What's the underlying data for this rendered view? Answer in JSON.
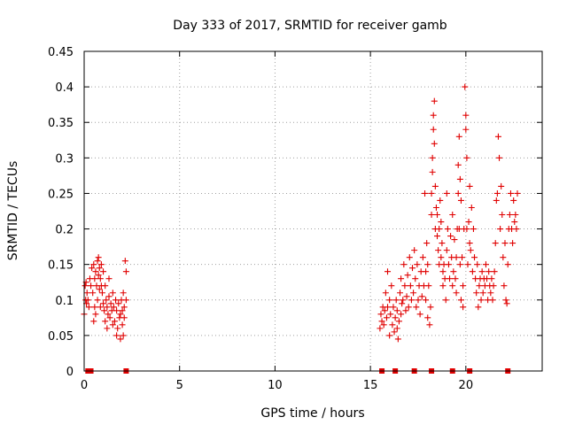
{
  "chart_data": {
    "type": "scatter",
    "title": "Day 333 of 2017, SRMTID for receiver gamb",
    "xlabel": "GPS time / hours",
    "ylabel": "SRMTID / TECUs",
    "xlim": [
      0,
      24
    ],
    "ylim": [
      0,
      0.45
    ],
    "xticks": [
      "0",
      "5",
      "10",
      "15",
      "20"
    ],
    "xtick_values": [
      0,
      5,
      10,
      15,
      20
    ],
    "yticks": [
      "0",
      "0.05",
      "0.1",
      "0.15",
      "0.2",
      "0.25",
      "0.3",
      "0.35",
      "0.4",
      "0.45"
    ],
    "ytick_values": [
      0,
      0.05,
      0.1,
      0.15,
      0.2,
      0.25,
      0.3,
      0.35,
      0.4,
      0.45
    ],
    "grid": true,
    "marker": "plus",
    "color": "#e00000",
    "series": [
      {
        "name": "SRMTID",
        "points": [
          [
            0.0,
            0.08
          ],
          [
            0.05,
            0.12
          ],
          [
            0.08,
            0.1
          ],
          [
            0.1,
            0.125
          ],
          [
            0.12,
            0.095
          ],
          [
            0.15,
            0.11
          ],
          [
            0.2,
            0.1
          ],
          [
            0.25,
            0.09
          ],
          [
            0.3,
            0.13
          ],
          [
            0.35,
            0.12
          ],
          [
            0.4,
            0.145
          ],
          [
            0.45,
            0.11
          ],
          [
            0.5,
            0.07
          ],
          [
            0.5,
            0.15
          ],
          [
            0.55,
            0.09
          ],
          [
            0.55,
            0.13
          ],
          [
            0.6,
            0.14
          ],
          [
            0.6,
            0.08
          ],
          [
            0.65,
            0.12
          ],
          [
            0.7,
            0.155
          ],
          [
            0.7,
            0.1
          ],
          [
            0.75,
            0.135
          ],
          [
            0.75,
            0.16
          ],
          [
            0.8,
            0.115
          ],
          [
            0.8,
            0.145
          ],
          [
            0.85,
            0.13
          ],
          [
            0.85,
            0.09
          ],
          [
            0.9,
            0.12
          ],
          [
            0.9,
            0.15
          ],
          [
            0.95,
            0.11
          ],
          [
            1.0,
            0.14
          ],
          [
            1.0,
            0.095
          ],
          [
            1.05,
            0.085
          ],
          [
            1.1,
            0.12
          ],
          [
            1.1,
            0.07
          ],
          [
            1.15,
            0.1
          ],
          [
            1.2,
            0.06
          ],
          [
            1.2,
            0.09
          ],
          [
            1.25,
            0.08
          ],
          [
            1.3,
            0.13
          ],
          [
            1.3,
            0.105
          ],
          [
            1.35,
            0.075
          ],
          [
            1.4,
            0.095
          ],
          [
            1.45,
            0.085
          ],
          [
            1.5,
            0.065
          ],
          [
            1.5,
            0.11
          ],
          [
            1.55,
            0.09
          ],
          [
            1.6,
            0.07
          ],
          [
            1.65,
            0.1
          ],
          [
            1.7,
            0.05
          ],
          [
            1.7,
            0.085
          ],
          [
            1.75,
            0.06
          ],
          [
            1.8,
            0.095
          ],
          [
            1.85,
            0.075
          ],
          [
            1.9,
            0.045
          ],
          [
            1.9,
            0.08
          ],
          [
            1.95,
            0.1
          ],
          [
            2.0,
            0.065
          ],
          [
            2.0,
            0.085
          ],
          [
            2.05,
            0.11
          ],
          [
            2.05,
            0.05
          ],
          [
            2.1,
            0.075
          ],
          [
            2.1,
            0.09
          ],
          [
            2.15,
            0.155
          ],
          [
            2.2,
            0.14
          ],
          [
            2.2,
            0.1
          ],
          [
            15.5,
            0.06
          ],
          [
            15.55,
            0.08
          ],
          [
            15.6,
            0.07
          ],
          [
            15.65,
            0.09
          ],
          [
            15.7,
            0.065
          ],
          [
            15.75,
            0.085
          ],
          [
            15.8,
            0.11
          ],
          [
            15.85,
            0.075
          ],
          [
            15.9,
            0.14
          ],
          [
            15.9,
            0.09
          ],
          [
            16.0,
            0.05
          ],
          [
            16.0,
            0.1
          ],
          [
            16.05,
            0.08
          ],
          [
            16.1,
            0.12
          ],
          [
            16.15,
            0.065
          ],
          [
            16.2,
            0.09
          ],
          [
            16.25,
            0.055
          ],
          [
            16.3,
            0.075
          ],
          [
            16.35,
            0.1
          ],
          [
            16.4,
            0.06
          ],
          [
            16.4,
            0.085
          ],
          [
            16.45,
            0.045
          ],
          [
            16.5,
            0.07
          ],
          [
            16.55,
            0.11
          ],
          [
            16.6,
            0.13
          ],
          [
            16.6,
            0.08
          ],
          [
            16.65,
            0.095
          ],
          [
            16.7,
            0.1
          ],
          [
            16.75,
            0.15
          ],
          [
            16.8,
            0.12
          ],
          [
            16.85,
            0.085
          ],
          [
            16.9,
            0.105
          ],
          [
            16.95,
            0.135
          ],
          [
            17.0,
            0.09
          ],
          [
            17.05,
            0.16
          ],
          [
            17.1,
            0.12
          ],
          [
            17.15,
            0.1
          ],
          [
            17.2,
            0.145
          ],
          [
            17.25,
            0.11
          ],
          [
            17.3,
            0.17
          ],
          [
            17.35,
            0.13
          ],
          [
            17.4,
            0.09
          ],
          [
            17.45,
            0.15
          ],
          [
            17.5,
            0.1
          ],
          [
            17.55,
            0.12
          ],
          [
            17.6,
            0.08
          ],
          [
            17.65,
            0.14
          ],
          [
            17.7,
            0.105
          ],
          [
            17.75,
            0.16
          ],
          [
            17.8,
            0.12
          ],
          [
            17.85,
            0.25
          ],
          [
            17.9,
            0.14
          ],
          [
            17.9,
            0.1
          ],
          [
            17.95,
            0.18
          ],
          [
            18.0,
            0.15
          ],
          [
            18.0,
            0.075
          ],
          [
            18.05,
            0.12
          ],
          [
            18.1,
            0.065
          ],
          [
            18.15,
            0.09
          ],
          [
            18.2,
            0.22
          ],
          [
            18.2,
            0.25
          ],
          [
            18.25,
            0.28
          ],
          [
            18.25,
            0.3
          ],
          [
            18.3,
            0.34
          ],
          [
            18.3,
            0.36
          ],
          [
            18.35,
            0.38
          ],
          [
            18.35,
            0.32
          ],
          [
            18.4,
            0.26
          ],
          [
            18.4,
            0.2
          ],
          [
            18.45,
            0.23
          ],
          [
            18.5,
            0.19
          ],
          [
            18.5,
            0.22
          ],
          [
            18.55,
            0.17
          ],
          [
            18.6,
            0.2
          ],
          [
            18.6,
            0.15
          ],
          [
            18.65,
            0.24
          ],
          [
            18.7,
            0.16
          ],
          [
            18.7,
            0.21
          ],
          [
            18.75,
            0.18
          ],
          [
            18.8,
            0.14
          ],
          [
            18.8,
            0.12
          ],
          [
            18.85,
            0.15
          ],
          [
            18.9,
            0.13
          ],
          [
            18.95,
            0.1
          ],
          [
            19.0,
            0.25
          ],
          [
            19.0,
            0.17
          ],
          [
            19.05,
            0.2
          ],
          [
            19.1,
            0.15
          ],
          [
            19.15,
            0.13
          ],
          [
            19.2,
            0.19
          ],
          [
            19.25,
            0.16
          ],
          [
            19.3,
            0.12
          ],
          [
            19.3,
            0.22
          ],
          [
            19.35,
            0.14
          ],
          [
            19.4,
            0.185
          ],
          [
            19.45,
            0.13
          ],
          [
            19.5,
            0.11
          ],
          [
            19.5,
            0.16
          ],
          [
            19.55,
            0.2
          ],
          [
            19.6,
            0.29
          ],
          [
            19.6,
            0.25
          ],
          [
            19.65,
            0.33
          ],
          [
            19.65,
            0.2
          ],
          [
            19.7,
            0.27
          ],
          [
            19.7,
            0.15
          ],
          [
            19.75,
            0.1
          ],
          [
            19.75,
            0.24
          ],
          [
            19.8,
            0.16
          ],
          [
            19.85,
            0.09
          ],
          [
            19.85,
            0.12
          ],
          [
            19.9,
            0.2
          ],
          [
            19.95,
            0.4
          ],
          [
            20.0,
            0.36
          ],
          [
            20.0,
            0.34
          ],
          [
            20.05,
            0.2
          ],
          [
            20.05,
            0.3
          ],
          [
            20.1,
            0.15
          ],
          [
            20.15,
            0.21
          ],
          [
            20.2,
            0.18
          ],
          [
            20.2,
            0.26
          ],
          [
            20.25,
            0.17
          ],
          [
            20.3,
            0.23
          ],
          [
            20.35,
            0.14
          ],
          [
            20.4,
            0.2
          ],
          [
            20.45,
            0.16
          ],
          [
            20.5,
            0.13
          ],
          [
            20.55,
            0.11
          ],
          [
            20.6,
            0.15
          ],
          [
            20.65,
            0.09
          ],
          [
            20.7,
            0.12
          ],
          [
            20.75,
            0.13
          ],
          [
            20.8,
            0.1
          ],
          [
            20.85,
            0.14
          ],
          [
            20.9,
            0.11
          ],
          [
            20.95,
            0.13
          ],
          [
            21.0,
            0.12
          ],
          [
            21.05,
            0.15
          ],
          [
            21.1,
            0.13
          ],
          [
            21.15,
            0.1
          ],
          [
            21.2,
            0.14
          ],
          [
            21.25,
            0.12
          ],
          [
            21.3,
            0.11
          ],
          [
            21.35,
            0.13
          ],
          [
            21.4,
            0.1
          ],
          [
            21.45,
            0.12
          ],
          [
            21.5,
            0.14
          ],
          [
            21.55,
            0.18
          ],
          [
            21.6,
            0.24
          ],
          [
            21.65,
            0.25
          ],
          [
            21.7,
            0.33
          ],
          [
            21.75,
            0.3
          ],
          [
            21.8,
            0.2
          ],
          [
            21.85,
            0.26
          ],
          [
            21.9,
            0.22
          ],
          [
            21.95,
            0.16
          ],
          [
            22.0,
            0.12
          ],
          [
            22.05,
            0.18
          ],
          [
            22.1,
            0.1
          ],
          [
            22.15,
            0.095
          ],
          [
            22.2,
            0.15
          ],
          [
            22.25,
            0.2
          ],
          [
            22.3,
            0.22
          ],
          [
            22.35,
            0.25
          ],
          [
            22.4,
            0.2
          ],
          [
            22.45,
            0.18
          ],
          [
            22.5,
            0.24
          ],
          [
            22.55,
            0.21
          ],
          [
            22.6,
            0.22
          ],
          [
            22.65,
            0.2
          ],
          [
            22.7,
            0.25
          ]
        ]
      },
      {
        "name": "Zero markers",
        "marker": "square",
        "points": [
          [
            0.2,
            0
          ],
          [
            0.35,
            0
          ],
          [
            2.2,
            0
          ],
          [
            15.6,
            0
          ],
          [
            16.3,
            0
          ],
          [
            17.3,
            0
          ],
          [
            18.2,
            0
          ],
          [
            19.3,
            0
          ],
          [
            20.2,
            0
          ],
          [
            22.2,
            0
          ]
        ]
      }
    ]
  }
}
